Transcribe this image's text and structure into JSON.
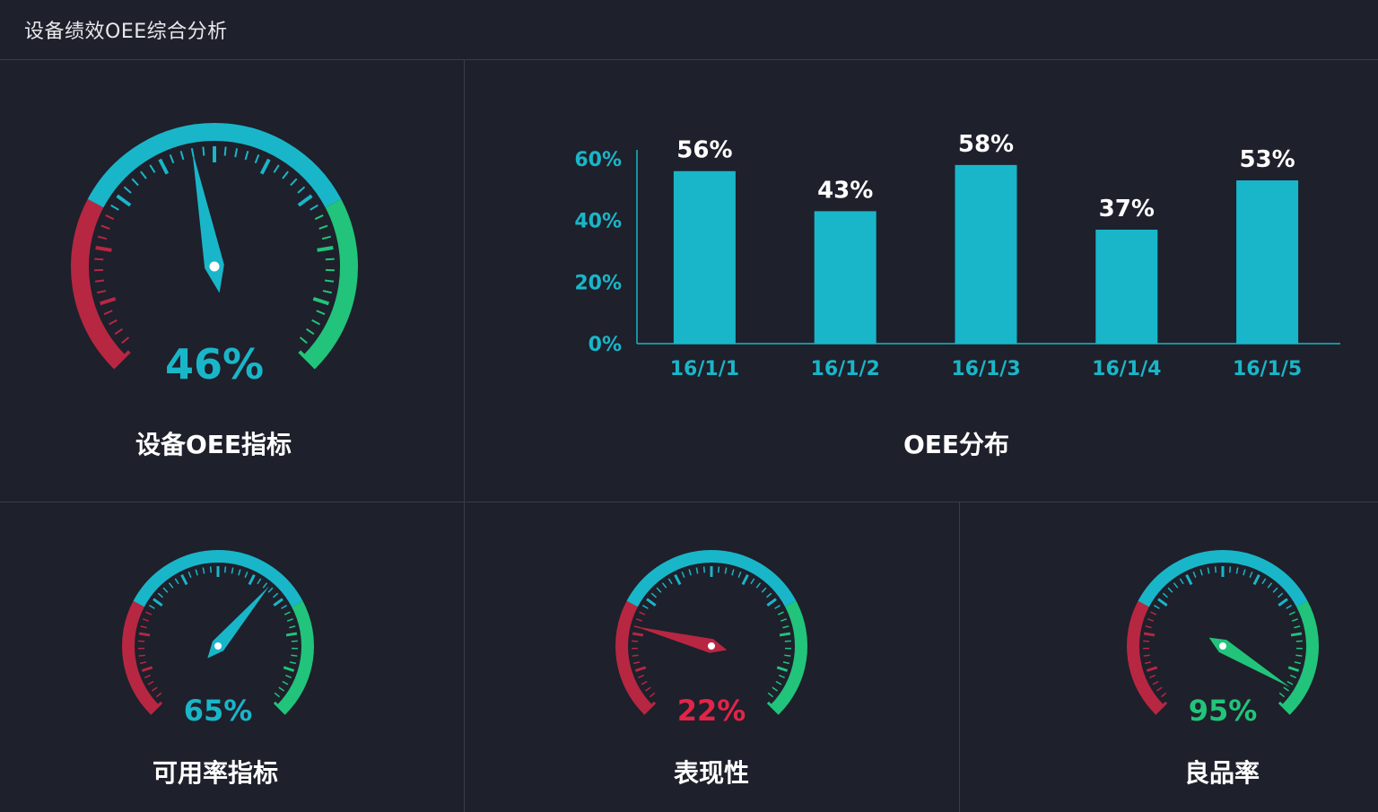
{
  "header": {
    "title": "设备绩效OEE综合分析"
  },
  "colors": {
    "background": "#1e202b",
    "teal": "#19b6c9",
    "red": "#b72742",
    "green": "#21c47a",
    "divider": "#3a3d49"
  },
  "main_gauge": {
    "title": "设备OEE指标",
    "value": 46,
    "value_label": "46%",
    "value_color": "#19b6c9",
    "needle_color": "#19b6c9"
  },
  "oee_chart": {
    "title": "OEE分布",
    "chart_data": {
      "type": "bar",
      "categories": [
        "16/1/1",
        "16/1/2",
        "16/1/3",
        "16/1/4",
        "16/1/5"
      ],
      "values": [
        56,
        43,
        58,
        37,
        53
      ],
      "data_labels": [
        "56%",
        "43%",
        "58%",
        "37%",
        "53%"
      ],
      "yticks": [
        "0%",
        "20%",
        "40%",
        "60%"
      ],
      "ylim": [
        0,
        60
      ],
      "bar_color": "#19b6c9"
    }
  },
  "small_gauges": [
    {
      "title": "可用率指标",
      "value": 65,
      "value_label": "65%",
      "value_color": "#19b6c9",
      "needle_color": "#19b6c9"
    },
    {
      "title": "表现性",
      "value": 22,
      "value_label": "22%",
      "value_color": "#e02548",
      "needle_color": "#b72742"
    },
    {
      "title": "良品率",
      "value": 95,
      "value_label": "95%",
      "value_color": "#21c47a",
      "needle_color": "#21c47a"
    }
  ]
}
